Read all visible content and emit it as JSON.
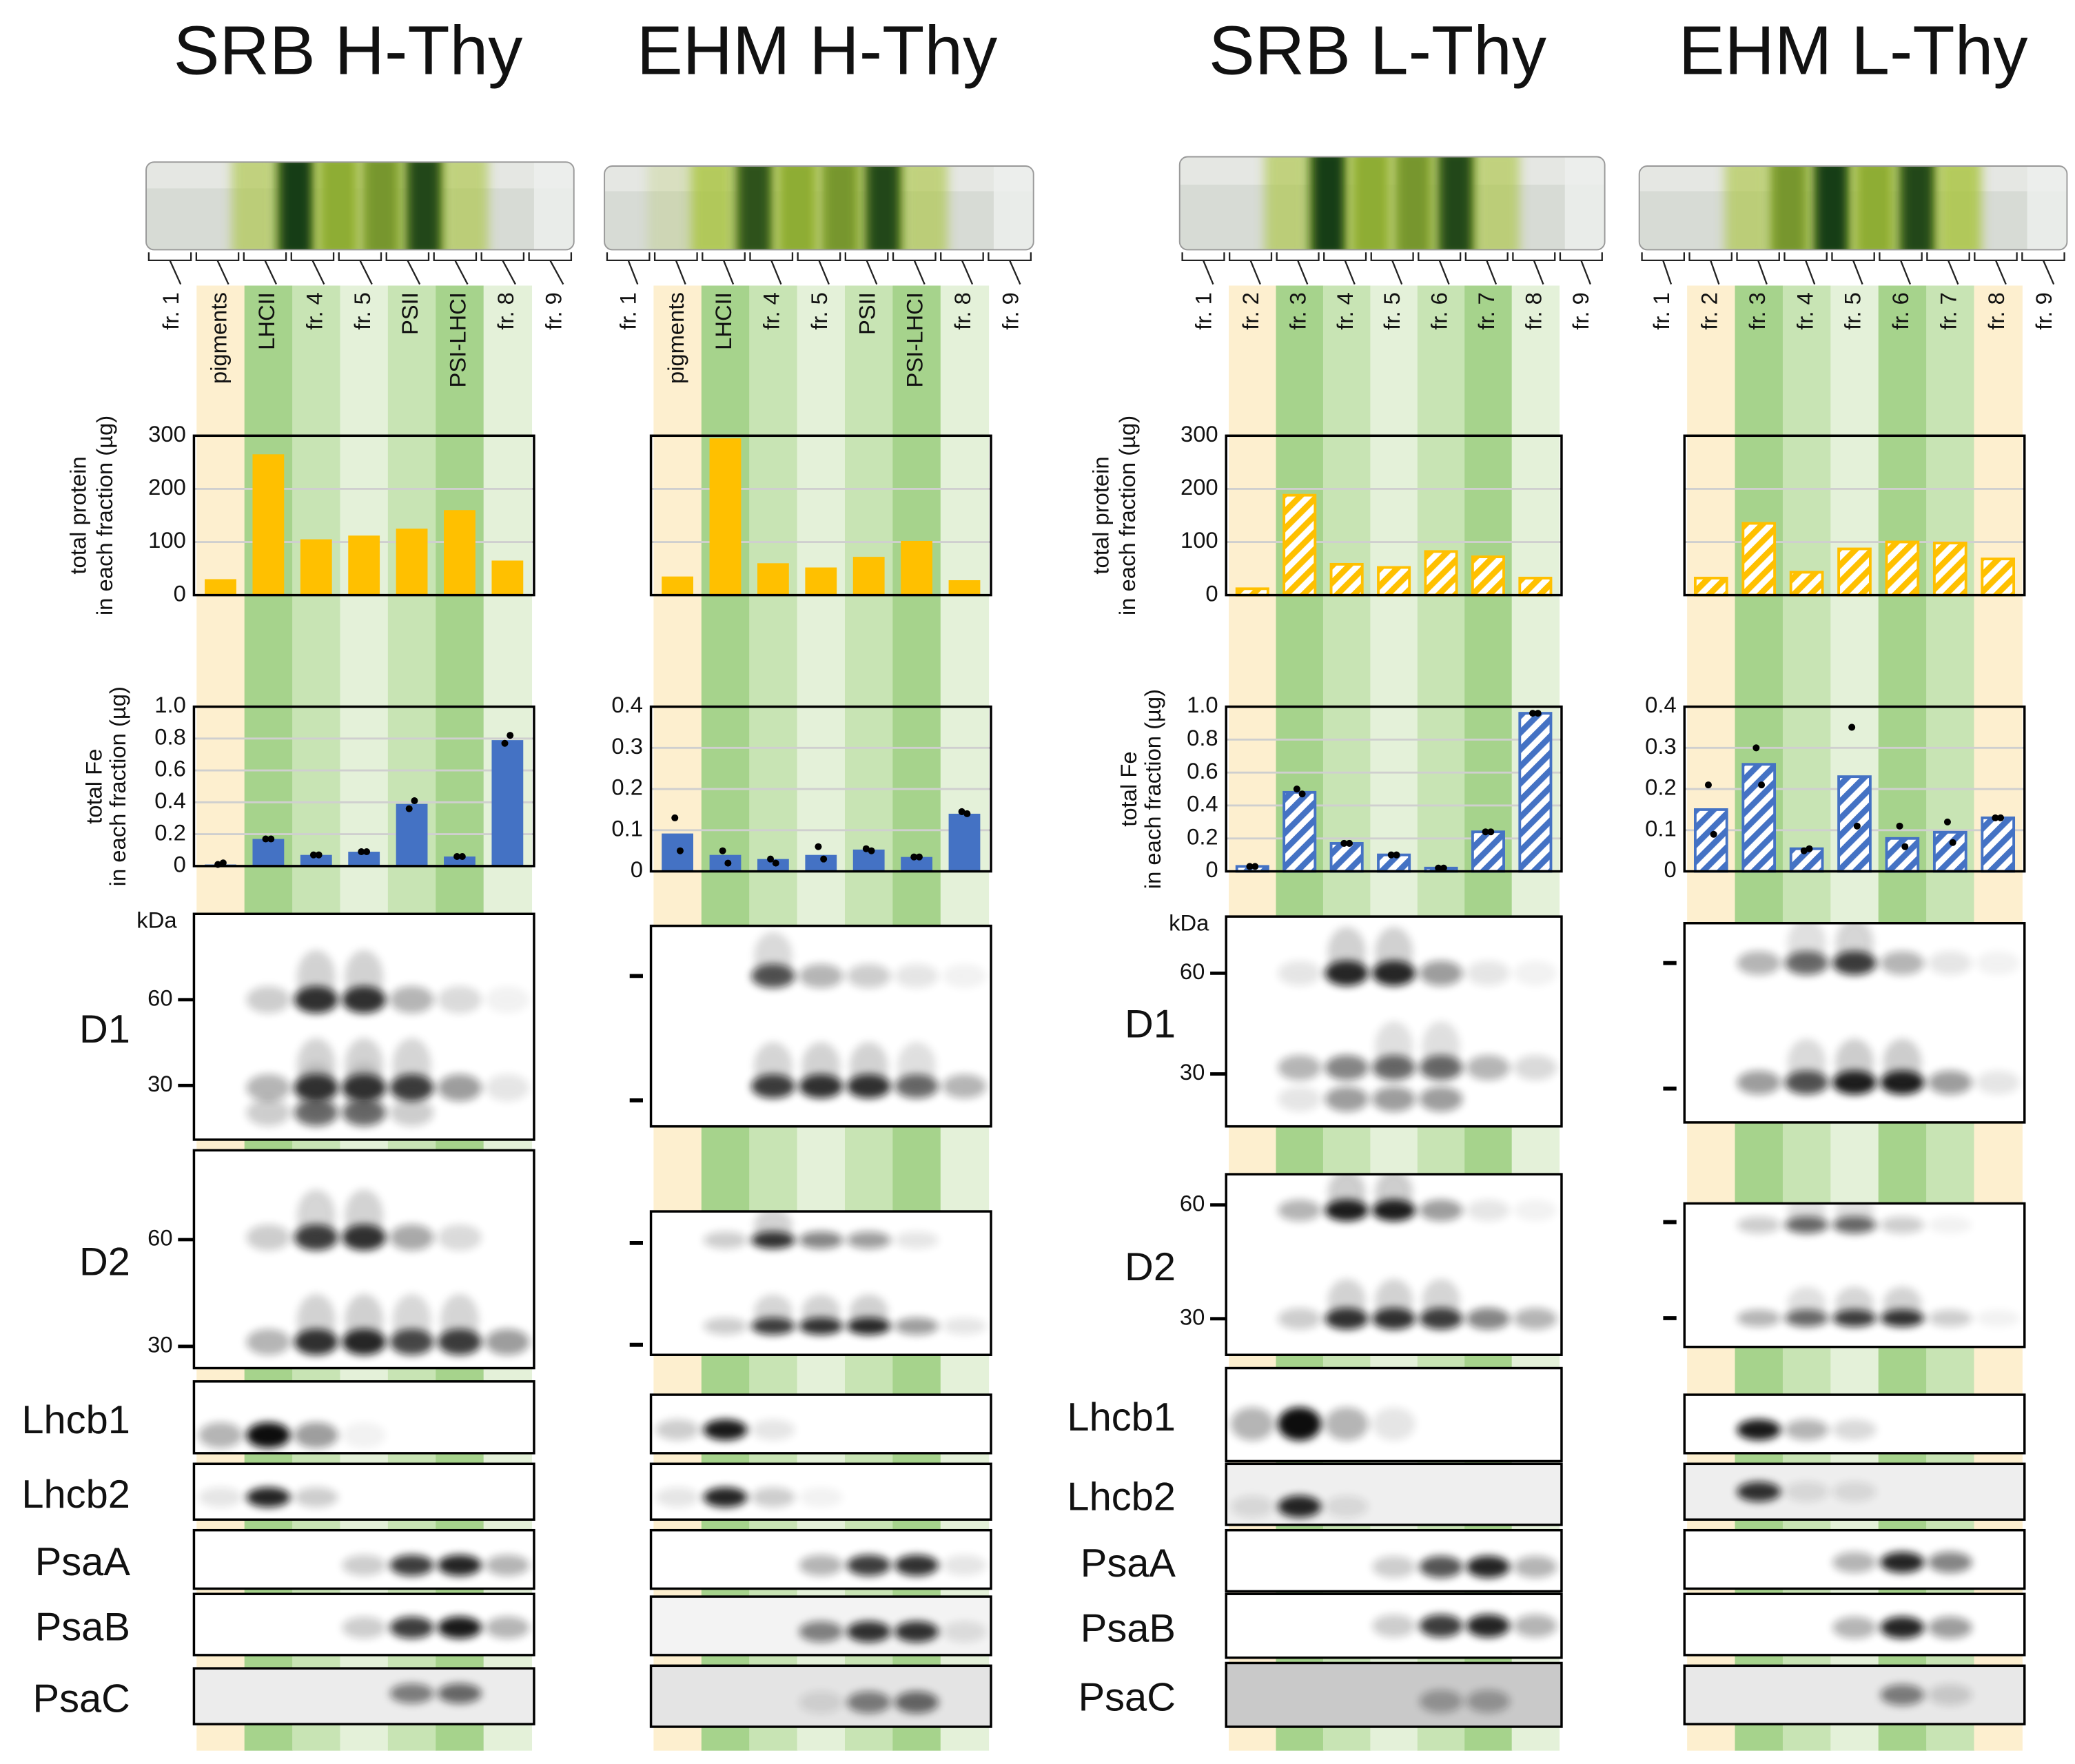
{
  "chart_data": [
    {
      "type": "bar",
      "title": "SRB H-Thy",
      "categories": [
        "fr. 1",
        "pigments",
        "LHCII",
        "fr. 4",
        "fr. 5",
        "PSII",
        "PSI-LHCI",
        "fr. 8",
        "fr. 9"
      ],
      "shades": [
        null,
        "#fdefcf",
        "#a6d38c",
        "#c8e4b4",
        "#e4f1d9",
        "#c8e4b4",
        "#a6d38c",
        "#e4f1d9",
        null
      ],
      "values": [
        null,
        30,
        265,
        105,
        112,
        125,
        160,
        65,
        null
      ],
      "color": "#ffc000",
      "hatched": false,
      "ylim": [
        0,
        300
      ],
      "yticks": [
        0,
        100,
        200,
        300
      ],
      "tick_labels": true,
      "ylabel": [
        "total protein",
        "in each fraction (µg)"
      ],
      "grid": true
    },
    {
      "type": "bar",
      "values": [
        null,
        0.01,
        0.17,
        0.07,
        0.09,
        0.39,
        0.06,
        0.79,
        null
      ],
      "points": [
        null,
        [
          0.01,
          0.02
        ],
        [
          0.17,
          0.17
        ],
        [
          0.07,
          0.07
        ],
        [
          0.09,
          0.09
        ],
        [
          0.36,
          0.41
        ],
        [
          0.06,
          0.06
        ],
        [
          0.77,
          0.82
        ],
        null
      ],
      "color": "#4472c4",
      "hatched": false,
      "ylim": [
        0,
        1
      ],
      "yticks": [
        0,
        0.2,
        0.4,
        0.6,
        0.8,
        {
          "value": 1,
          "label": "1.0"
        }
      ],
      "tick_labels": true,
      "ylabel": [
        "total Fe",
        "in each fraction (µg)"
      ],
      "grid": true
    },
    {
      "type": "bar",
      "title": "EHM H-Thy",
      "categories": [
        "fr. 1",
        "pigments",
        "LHCII",
        "fr. 4",
        "fr. 5",
        "PSII",
        "PSI-LHCI",
        "fr. 8",
        "fr. 9"
      ],
      "shades": [
        null,
        "#fdefcf",
        "#a6d38c",
        "#c8e4b4",
        "#e4f1d9",
        "#c8e4b4",
        "#a6d38c",
        "#e4f1d9",
        null
      ],
      "values": [
        null,
        35,
        295,
        60,
        52,
        72,
        102,
        28,
        null
      ],
      "color": "#ffc000",
      "hatched": false,
      "ylim": [
        0,
        300
      ],
      "yticks": [
        0,
        100,
        200,
        300
      ],
      "tick_labels": false,
      "grid": true
    },
    {
      "type": "bar",
      "values": [
        null,
        0.092,
        0.04,
        0.03,
        0.04,
        0.053,
        0.035,
        0.14,
        null
      ],
      "points": [
        null,
        [
          0.13,
          0.05
        ],
        [
          0.05,
          0.02
        ],
        [
          0.03,
          0.02
        ],
        [
          0.06,
          0.03
        ],
        [
          0.055,
          0.05
        ],
        [
          0.035,
          0.035
        ],
        [
          0.145,
          0.14
        ],
        null
      ],
      "color": "#4472c4",
      "hatched": false,
      "ylim": [
        0,
        0.4
      ],
      "yticks": [
        0,
        0.1,
        0.2,
        0.3,
        0.4
      ],
      "tick_labels": true,
      "grid": true
    },
    {
      "type": "bar",
      "title": "SRB L-Thy",
      "categories": [
        "fr. 1",
        "fr. 2",
        "fr. 3",
        "fr. 4",
        "fr. 5",
        "fr. 6",
        "fr. 7",
        "fr. 8",
        "fr. 9"
      ],
      "shades": [
        null,
        "#fdefcf",
        "#a6d38c",
        "#c8e4b4",
        "#e4f1d9",
        "#c8e4b4",
        "#a6d38c",
        "#e4f1d9",
        null
      ],
      "values": [
        null,
        12,
        188,
        58,
        52,
        82,
        72,
        32,
        null
      ],
      "color": "#ffc000",
      "hatched": true,
      "ylim": [
        0,
        300
      ],
      "yticks": [
        0,
        100,
        200,
        300
      ],
      "tick_labels": true,
      "ylabel": [
        "total protein",
        "in each fraction (µg)"
      ],
      "grid": true
    },
    {
      "type": "bar",
      "values": [
        null,
        0.03,
        0.48,
        0.17,
        0.1,
        0.02,
        0.24,
        0.96,
        null
      ],
      "points": [
        null,
        [
          0.03,
          0.03
        ],
        [
          0.5,
          0.47
        ],
        [
          0.17,
          0.17
        ],
        [
          0.1,
          0.1
        ],
        [
          0.02,
          0.02
        ],
        [
          0.24,
          0.24
        ],
        [
          0.96,
          0.96
        ],
        null
      ],
      "color": "#4472c4",
      "hatched": true,
      "ylim": [
        0,
        1
      ],
      "yticks": [
        0,
        0.2,
        0.4,
        0.6,
        0.8,
        {
          "value": 1,
          "label": "1.0"
        }
      ],
      "tick_labels": true,
      "ylabel": [
        "total Fe",
        "in each fraction (µg)"
      ],
      "grid": true
    },
    {
      "type": "bar",
      "title": "EHM L-Thy",
      "categories": [
        "fr. 1",
        "fr. 2",
        "fr. 3",
        "fr. 4",
        "fr. 5",
        "fr. 6",
        "fr. 7",
        "fr. 8",
        "fr. 9"
      ],
      "shades": [
        null,
        "#fdefcf",
        "#a6d38c",
        "#c8e4b4",
        "#e4f1d9",
        "#a6d38c",
        "#c8e4b4",
        "#fdefcf",
        null
      ],
      "values": [
        null,
        32,
        135,
        43,
        87,
        100,
        98,
        68,
        null
      ],
      "color": "#ffc000",
      "hatched": true,
      "ylim": [
        0,
        300
      ],
      "yticks": [
        0,
        100,
        200,
        300
      ],
      "tick_labels": false,
      "grid": true
    },
    {
      "type": "bar",
      "values": [
        null,
        0.15,
        0.26,
        0.055,
        0.23,
        0.08,
        0.095,
        0.13,
        null
      ],
      "points": [
        null,
        [
          0.21,
          0.09
        ],
        [
          0.3,
          0.21
        ],
        [
          0.05,
          0.055
        ],
        [
          0.35,
          0.11
        ],
        [
          0.11,
          0.06
        ],
        [
          0.12,
          0.07
        ],
        [
          0.13,
          0.13
        ],
        null
      ],
      "color": "#4472c4",
      "hatched": true,
      "ylim": [
        0,
        0.4
      ],
      "yticks": [
        0,
        0.1,
        0.2,
        0.3,
        0.4
      ],
      "tick_labels": true,
      "grid": true
    }
  ],
  "blots": [
    {
      "kda": "kDa",
      "rows": [
        {
          "name": "D1",
          "ticks": [
            60,
            30
          ]
        },
        {
          "name": "D2",
          "ticks": [
            60,
            30
          ]
        },
        {
          "name": "Lhcb1"
        },
        {
          "name": "Lhcb2"
        },
        {
          "name": "PsaA"
        },
        {
          "name": "PsaB"
        },
        {
          "name": "PsaC"
        }
      ]
    },
    null,
    {
      "kda": "kDa",
      "rows": [
        {
          "name": "D1",
          "ticks": [
            60,
            30
          ]
        },
        {
          "name": "D2",
          "ticks": [
            60,
            30
          ]
        },
        {
          "name": "Lhcb1"
        },
        {
          "name": "Lhcb2"
        },
        {
          "name": "PsaA"
        },
        {
          "name": "PsaB"
        },
        {
          "name": "PsaC"
        }
      ]
    },
    null
  ]
}
